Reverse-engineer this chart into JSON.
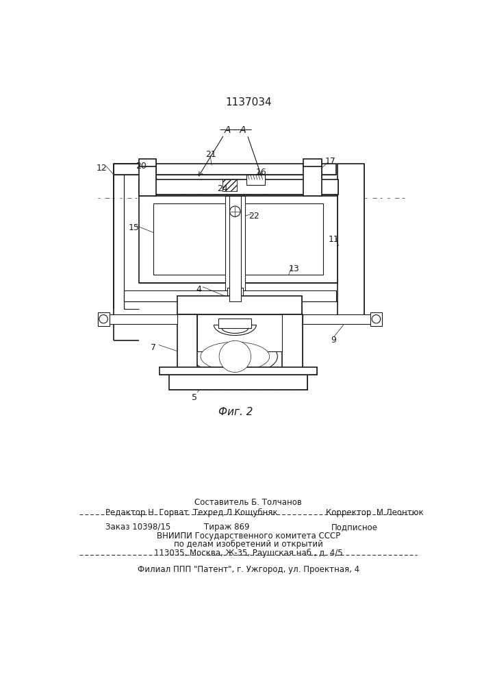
{
  "patent_number": "1137034",
  "fig_label": "Фиг. 2",
  "section_label": "A - A",
  "bg_color": "#f5f5f0",
  "line_color": "#1a1a1a",
  "footer": {
    "line0": "Составитель Б. Толчанов",
    "line1_left": "Редактор Н. Горват",
    "line1_mid": "Техред Л.Кощубняк",
    "line1_right": "Корректор  М.Леонтюк",
    "line2_left": "Заказ 10398/15",
    "line2_mid": "Тираж 869",
    "line2_right": "Подписное",
    "line3": "ВНИИПИ Государственного комитета СССР",
    "line4": "по делам изобретений и открытий",
    "line5": "113035, Москва, Ж-35, Раушская наб., д. 4/5",
    "line6": "Филиал ППП \"Патент\", г. Ужгород, ул. Проектная, 4"
  }
}
